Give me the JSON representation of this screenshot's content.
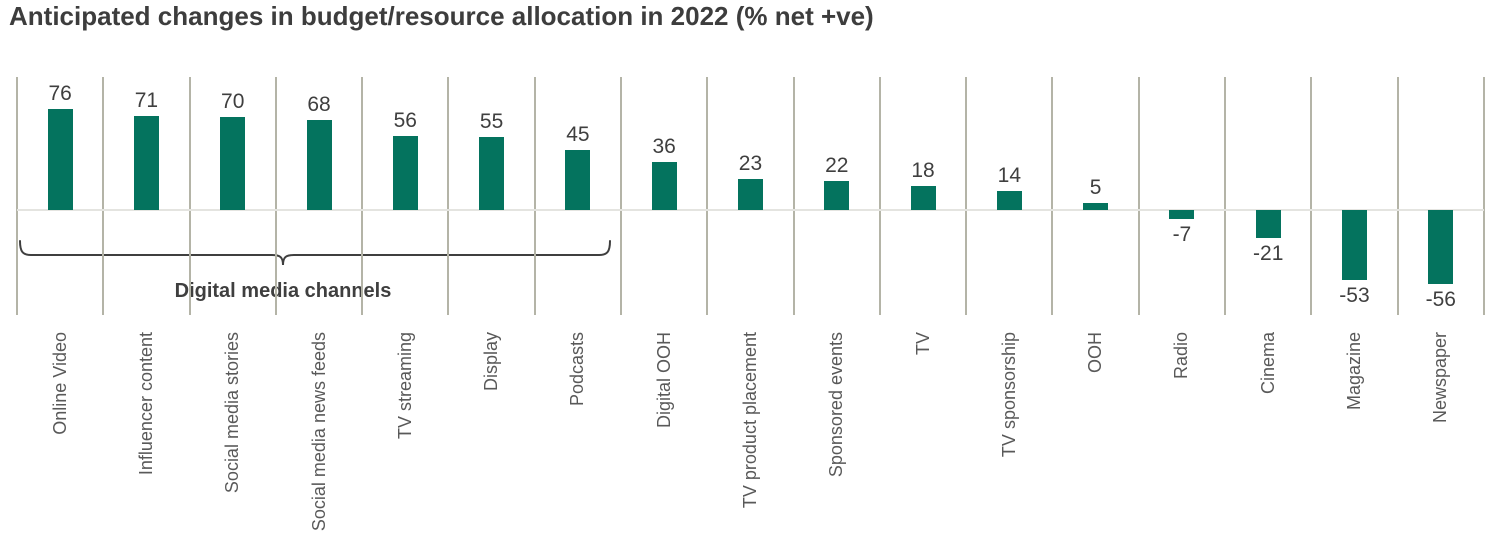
{
  "title": "Anticipated changes in budget/resource allocation in 2022 (% net +ve)",
  "chart_data": {
    "type": "bar",
    "title": "Anticipated changes in budget/resource allocation in 2022 (% net +ve)",
    "categories": [
      "Online Video",
      "Influencer content",
      "Social media stories",
      "Social media news feeds",
      "TV streaming",
      "Display",
      "Podcasts",
      "Digital OOH",
      "TV product placement",
      "Sponsored events",
      "TV",
      "TV sponsorship",
      "OOH",
      "Radio",
      "Cinema",
      "Magazine",
      "Newspaper"
    ],
    "values": [
      76,
      71,
      70,
      68,
      56,
      55,
      45,
      36,
      23,
      22,
      18,
      14,
      5,
      -7,
      -21,
      -53,
      -56
    ],
    "xlabel": "",
    "ylabel": "",
    "ylim": [
      -80,
      100
    ],
    "grid": "vertical-category-separators",
    "legend": "none",
    "data_labels": "outside-end",
    "bar_color": "#04735E",
    "annotation": {
      "label": "Digital media channels",
      "covers_categories_from": "Online Video",
      "covers_categories_to": "Podcasts"
    }
  },
  "colors": {
    "bar": "#04735E",
    "title_text": "#3d3d3d",
    "value_text": "#3f3f3f",
    "category_text": "#595959",
    "gridline": "#b4b4a7",
    "zero_line": "#e4e4e0",
    "bracket": "#3f3f3f",
    "background": "#ffffff"
  }
}
